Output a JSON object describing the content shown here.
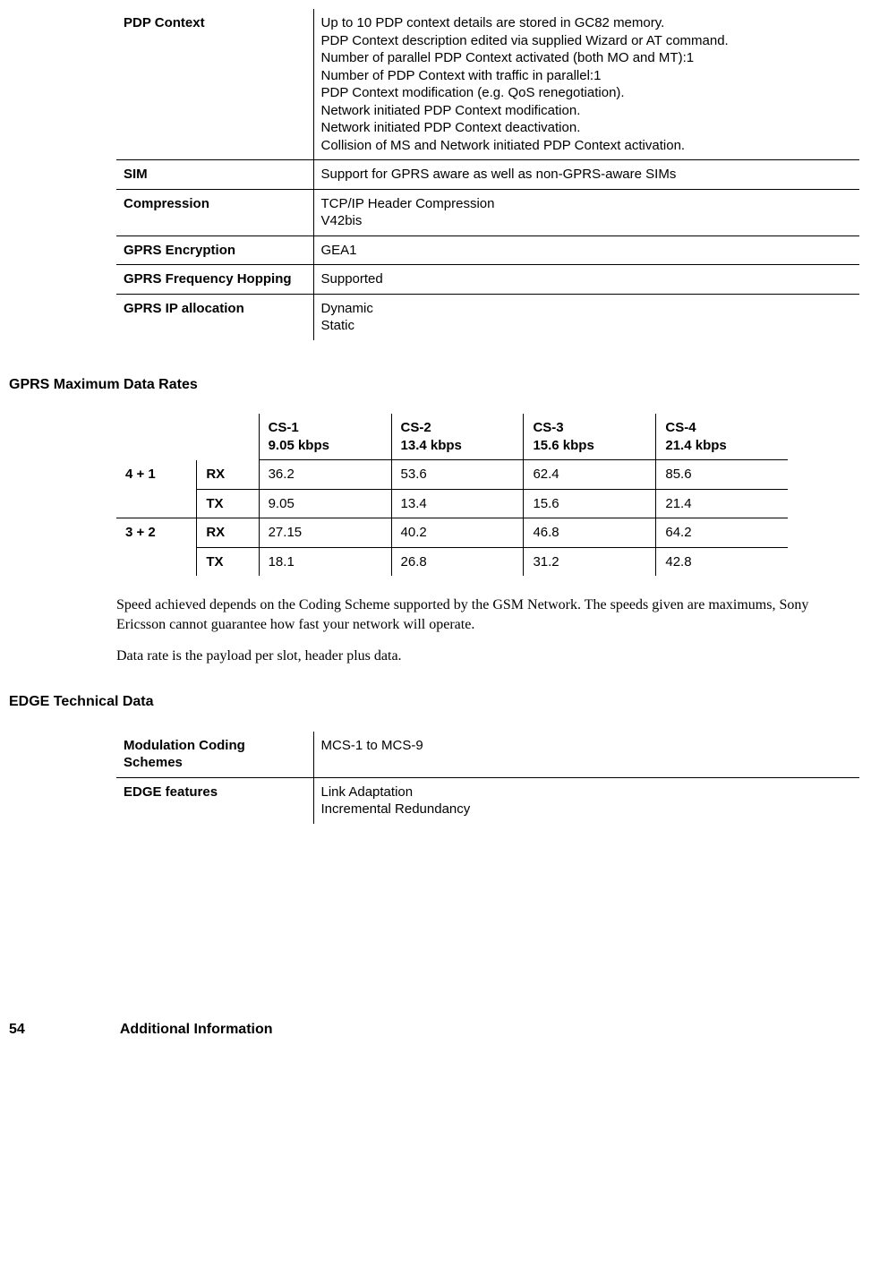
{
  "spec_rows": [
    {
      "label": "PDP Context",
      "value": "Up to 10 PDP context details are stored in GC82 memory.\nPDP Context description edited via supplied Wizard or AT command.\nNumber of parallel PDP Context activated (both MO and MT):1\nNumber of PDP Context with traffic in parallel:1\nPDP Context modification (e.g. QoS renegotiation).\nNetwork initiated PDP Context modification.\nNetwork initiated PDP Context deactivation.\nCollision of MS and Network initiated PDP Context activation."
    },
    {
      "label": "SIM",
      "value": "Support for GPRS aware as well as non-GPRS-aware SIMs"
    },
    {
      "label": "Compression",
      "value": "TCP/IP Header Compression\nV42bis"
    },
    {
      "label": "GPRS Encryption",
      "value": "GEA1"
    },
    {
      "label": "GPRS Frequency Hopping",
      "value": "Supported"
    },
    {
      "label": "GPRS IP allocation",
      "value": "Dynamic\nStatic"
    }
  ],
  "rates_heading": "GPRS Maximum Data Rates",
  "rates_cols": [
    "CS-1\n9.05 kbps",
    "CS-2\n13.4 kbps",
    "CS-3\n15.6 kbps",
    "CS-4\n21.4 kbps"
  ],
  "rates_groups": [
    {
      "slot": "4 + 1",
      "rows": [
        {
          "dir": "RX",
          "vals": [
            "36.2",
            "53.6",
            "62.4",
            "85.6"
          ]
        },
        {
          "dir": "TX",
          "vals": [
            "9.05",
            "13.4",
            "15.6",
            "21.4"
          ]
        }
      ]
    },
    {
      "slot": "3 + 2",
      "rows": [
        {
          "dir": "RX",
          "vals": [
            "27.15",
            "40.2",
            "46.8",
            "64.2"
          ]
        },
        {
          "dir": "TX",
          "vals": [
            "18.1",
            "26.8",
            "31.2",
            "42.8"
          ]
        }
      ]
    }
  ],
  "note1": "Speed achieved depends on the Coding Scheme supported by the GSM Network. The speeds given are maximums, Sony Ericsson cannot guarantee how fast your network will operate.",
  "note2": "Data rate is the payload per slot, header plus data.",
  "edge_heading": "EDGE Technical Data",
  "edge_rows": [
    {
      "label": "Modulation Coding Schemes",
      "value": "MCS-1 to MCS-9"
    },
    {
      "label": "EDGE features",
      "value": "Link Adaptation\nIncremental Redundancy"
    }
  ],
  "footer_page": "54",
  "footer_title": "Additional Information"
}
